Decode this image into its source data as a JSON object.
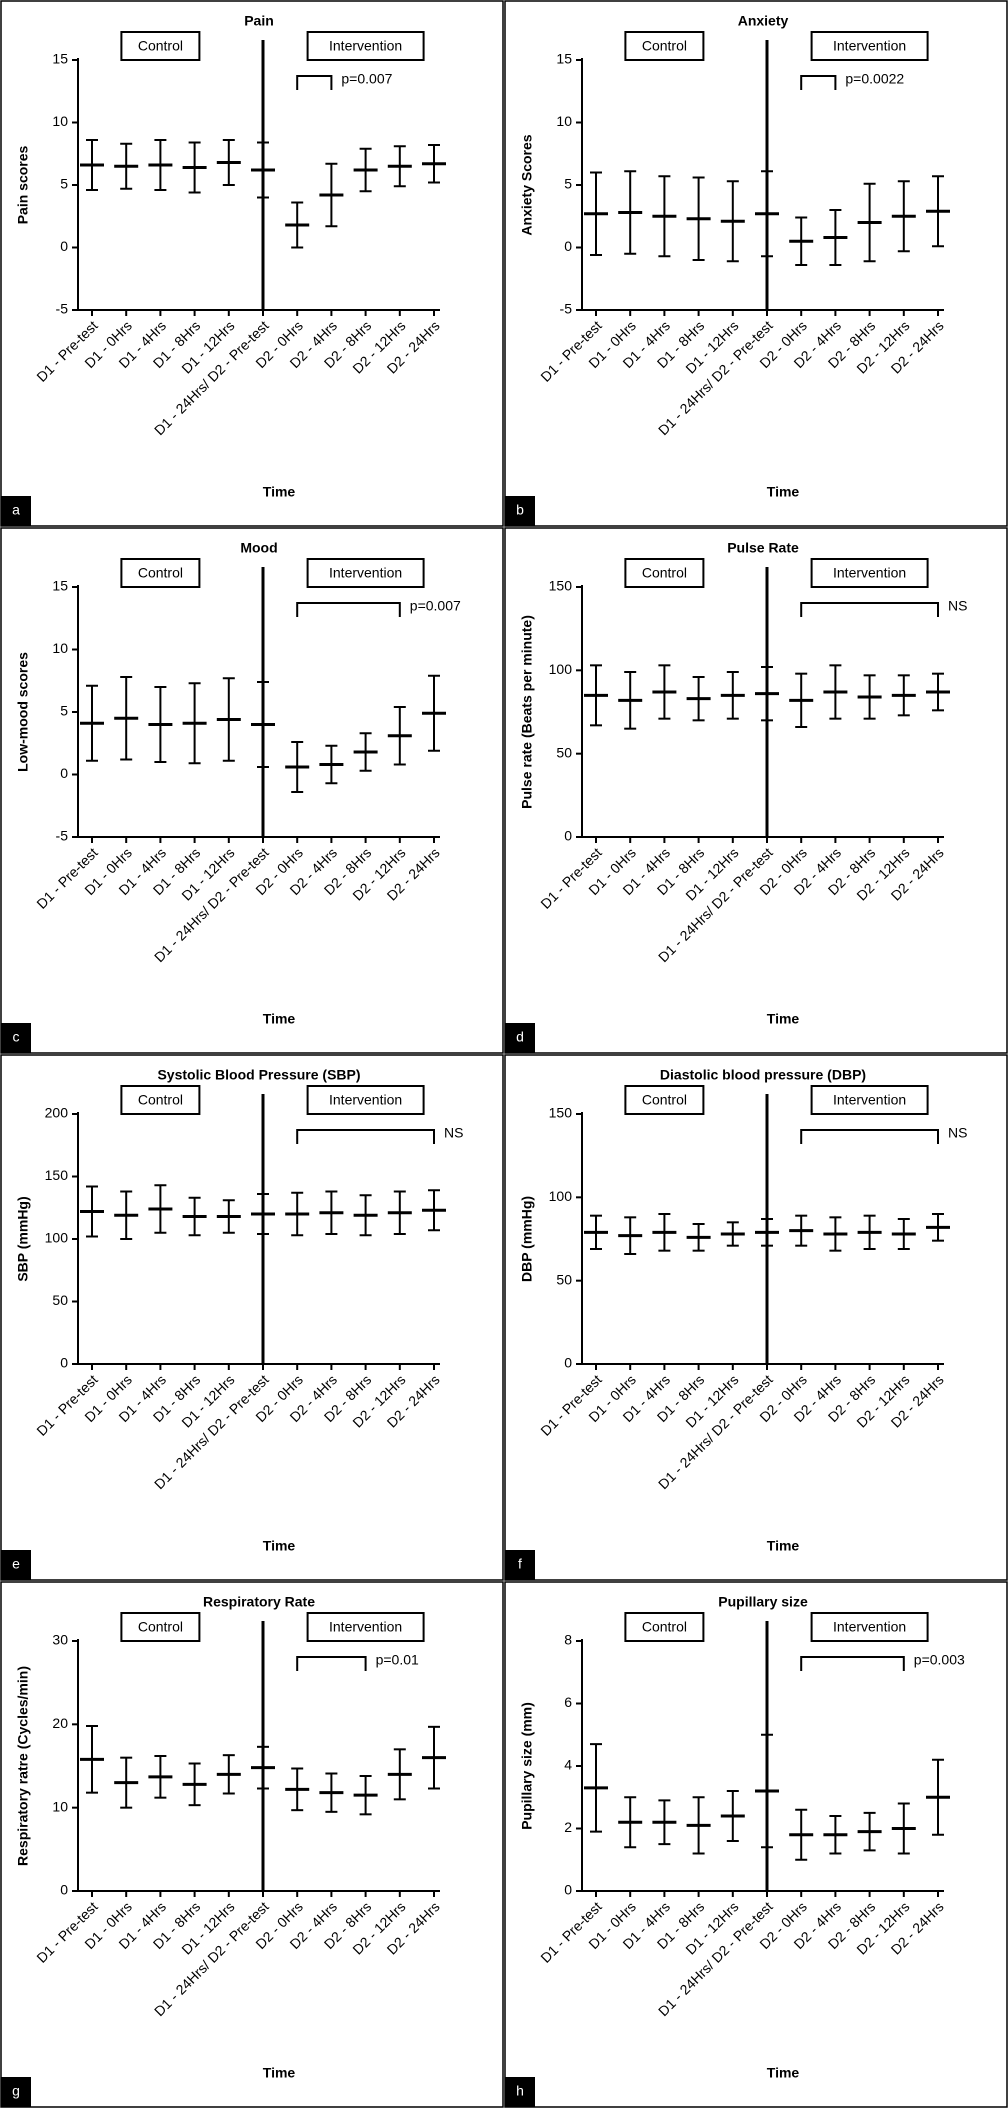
{
  "chart_data": [
    {
      "type": "errorbar",
      "panel": "a",
      "title": "Pain",
      "ylabel": "Pain scores",
      "xlabel": "Time",
      "groups": [
        "Control",
        "Intervention"
      ],
      "annotation": "p=0.007",
      "color": "#000000",
      "categories": [
        "D1 - Pre-test",
        "D1 - 0Hrs",
        "D1 - 4Hrs",
        "D1 - 8Hrs",
        "D1 - 12Hrs",
        "D1 - 24Hrs/ D2 - Pre-test",
        "D2 - 0Hrs",
        "D2 - 4Hrs",
        "D2 - 8Hrs",
        "D2 - 12Hrs",
        "D2 - 24Hrs"
      ],
      "values": [
        6.6,
        6.5,
        6.6,
        6.4,
        6.8,
        6.2,
        1.8,
        4.2,
        6.2,
        6.5,
        6.7
      ],
      "errors": [
        2,
        1.8,
        2,
        2,
        1.8,
        2.2,
        1.8,
        2.5,
        1.7,
        1.6,
        1.5
      ],
      "ylim": [
        -5,
        15
      ],
      "yticks": [
        -5,
        0,
        5,
        10,
        15
      ]
    },
    {
      "type": "errorbar",
      "panel": "b",
      "title": "Anxiety",
      "ylabel": "Anxiety Scores",
      "xlabel": "Time",
      "groups": [
        "Control",
        "Intervention"
      ],
      "annotation": "p=0.0022",
      "color": "#000000",
      "categories": [
        "D1 - Pre-test",
        "D1 - 0Hrs",
        "D1 - 4Hrs",
        "D1 - 8Hrs",
        "D1 - 12Hrs",
        "D1 - 24Hrs/ D2 - Pre-test",
        "D2 - 0Hrs",
        "D2 - 4Hrs",
        "D2 - 8Hrs",
        "D2 - 12Hrs",
        "D2 - 24Hrs"
      ],
      "values": [
        2.7,
        2.8,
        2.5,
        2.3,
        2.1,
        2.7,
        0.5,
        0.8,
        2.0,
        2.5,
        2.9
      ],
      "errors": [
        3.3,
        3.3,
        3.2,
        3.3,
        3.2,
        3.4,
        1.9,
        2.2,
        3.1,
        2.8,
        2.8
      ],
      "ylim": [
        -5,
        15
      ],
      "yticks": [
        -5,
        0,
        5,
        10,
        15
      ]
    },
    {
      "type": "errorbar",
      "panel": "c",
      "title": "Mood",
      "ylabel": "Low-mood scores",
      "xlabel": "Time",
      "groups": [
        "Control",
        "Intervention"
      ],
      "annotation": "p=0.007",
      "color": "#000000",
      "categories": [
        "D1 - Pre-test",
        "D1 - 0Hrs",
        "D1 - 4Hrs",
        "D1 - 8Hrs",
        "D1 - 12Hrs",
        "D1 - 24Hrs/ D2 - Pre-test",
        "D2 - 0Hrs",
        "D2 - 4Hrs",
        "D2 - 8Hrs",
        "D2 - 12Hrs",
        "D2 - 24Hrs"
      ],
      "values": [
        4.1,
        4.5,
        4.0,
        4.1,
        4.4,
        4.0,
        0.6,
        0.8,
        1.8,
        3.1,
        4.9
      ],
      "errors": [
        3,
        3.3,
        3,
        3.2,
        3.3,
        3.4,
        2,
        1.5,
        1.5,
        2.3,
        3
      ],
      "ylim": [
        -5,
        15
      ],
      "yticks": [
        -5,
        0,
        5,
        10,
        15
      ]
    },
    {
      "type": "errorbar",
      "panel": "d",
      "title": "Pulse Rate",
      "ylabel": "Pulse rate (Beats per minute)",
      "xlabel": "Time",
      "groups": [
        "Control",
        "Intervention"
      ],
      "annotation": "NS",
      "color": "#000000",
      "categories": [
        "D1 - Pre-test",
        "D1 - 0Hrs",
        "D1 - 4Hrs",
        "D1 - 8Hrs",
        "D1 - 12Hrs",
        "D1 - 24Hrs/ D2 - Pre-test",
        "D2 - 0Hrs",
        "D2 - 4Hrs",
        "D2 - 8Hrs",
        "D2 - 12Hrs",
        "D2 - 24Hrs"
      ],
      "values": [
        85,
        82,
        87,
        83,
        85,
        86,
        82,
        87,
        84,
        85,
        87
      ],
      "errors": [
        18,
        17,
        16,
        13,
        14,
        16,
        16,
        16,
        13,
        12,
        11
      ],
      "ylim": [
        0,
        150
      ],
      "yticks": [
        0,
        50,
        100,
        150
      ]
    },
    {
      "type": "errorbar",
      "panel": "e",
      "title": "Systolic Blood Pressure (SBP)",
      "ylabel": "SBP (mmHg)",
      "xlabel": "Time",
      "groups": [
        "Control",
        "Intervention"
      ],
      "annotation": "NS",
      "color": "#000000",
      "categories": [
        "D1 - Pre-test",
        "D1 - 0Hrs",
        "D1 - 4Hrs",
        "D1 - 8Hrs",
        "D1 - 12Hrs",
        "D1 - 24Hrs/ D2 - Pre-test",
        "D2 - 0Hrs",
        "D2 - 4Hrs",
        "D2 - 8Hrs",
        "D2 - 12Hrs",
        "D2 - 24Hrs"
      ],
      "values": [
        122,
        119,
        124,
        118,
        118,
        120,
        120,
        121,
        119,
        121,
        123
      ],
      "errors": [
        20,
        19,
        19,
        15,
        13,
        16,
        17,
        17,
        16,
        17,
        16
      ],
      "ylim": [
        0,
        200
      ],
      "yticks": [
        0,
        50,
        100,
        150,
        200
      ]
    },
    {
      "type": "errorbar",
      "panel": "f",
      "title": "Diastolic blood pressure (DBP)",
      "ylabel": "DBP (mmHg)",
      "xlabel": "Time",
      "groups": [
        "Control",
        "Intervention"
      ],
      "annotation": "NS",
      "color": "#000000",
      "categories": [
        "D1 - Pre-test",
        "D1 - 0Hrs",
        "D1 - 4Hrs",
        "D1 - 8Hrs",
        "D1 - 12Hrs",
        "D1 - 24Hrs/ D2 - Pre-test",
        "D2 - 0Hrs",
        "D2 - 4Hrs",
        "D2 - 8Hrs",
        "D2 - 12Hrs",
        "D2 - 24Hrs"
      ],
      "values": [
        79,
        77,
        79,
        76,
        78,
        79,
        80,
        78,
        79,
        78,
        82
      ],
      "errors": [
        10,
        11,
        11,
        8,
        7,
        8,
        9,
        10,
        10,
        9,
        8
      ],
      "ylim": [
        0,
        150
      ],
      "yticks": [
        0,
        50,
        100,
        150
      ]
    },
    {
      "type": "errorbar",
      "panel": "g",
      "title": "Respiratory Rate",
      "ylabel": "Respiratory ratre (Cycles/min)",
      "xlabel": "Time",
      "groups": [
        "Control",
        "Intervention"
      ],
      "annotation": "p=0.01",
      "color": "#000000",
      "categories": [
        "D1 - Pre-test",
        "D1 - 0Hrs",
        "D1 - 4Hrs",
        "D1 - 8Hrs",
        "D1 - 12Hrs",
        "D1 - 24Hrs/ D2 - Pre-test",
        "D2 - 0Hrs",
        "D2 - 4Hrs",
        "D2 - 8Hrs",
        "D2 - 12Hrs",
        "D2 - 24Hrs"
      ],
      "values": [
        15.8,
        13,
        13.7,
        12.8,
        14,
        14.8,
        12.2,
        11.8,
        11.5,
        14,
        16
      ],
      "errors": [
        4,
        3,
        2.5,
        2.5,
        2.3,
        2.5,
        2.5,
        2.3,
        2.3,
        3,
        3.7
      ],
      "ylim": [
        0,
        30
      ],
      "yticks": [
        0,
        10,
        20,
        30
      ]
    },
    {
      "type": "errorbar",
      "panel": "h",
      "title": "Pupillary size",
      "ylabel": "Pupillary size (mm)",
      "xlabel": "Time",
      "groups": [
        "Control",
        "Intervention"
      ],
      "annotation": "p=0.003",
      "color": "#000000",
      "categories": [
        "D1 - Pre-test",
        "D1 - 0Hrs",
        "D1 - 4Hrs",
        "D1 - 8Hrs",
        "D1 - 12Hrs",
        "D1 - 24Hrs/ D2 - Pre-test",
        "D2 - 0Hrs",
        "D2 - 4Hrs",
        "D2 - 8Hrs",
        "D2 - 12Hrs",
        "D2 - 24Hrs"
      ],
      "values": [
        3.3,
        2.2,
        2.2,
        2.1,
        2.4,
        3.2,
        1.8,
        1.8,
        1.9,
        2.0,
        3.0
      ],
      "errors": [
        1.4,
        0.8,
        0.7,
        0.9,
        0.8,
        1.8,
        0.8,
        0.6,
        0.6,
        0.8,
        1.2
      ],
      "ylim": [
        0,
        8
      ],
      "yticks": [
        0,
        2,
        4,
        6,
        8
      ]
    }
  ]
}
